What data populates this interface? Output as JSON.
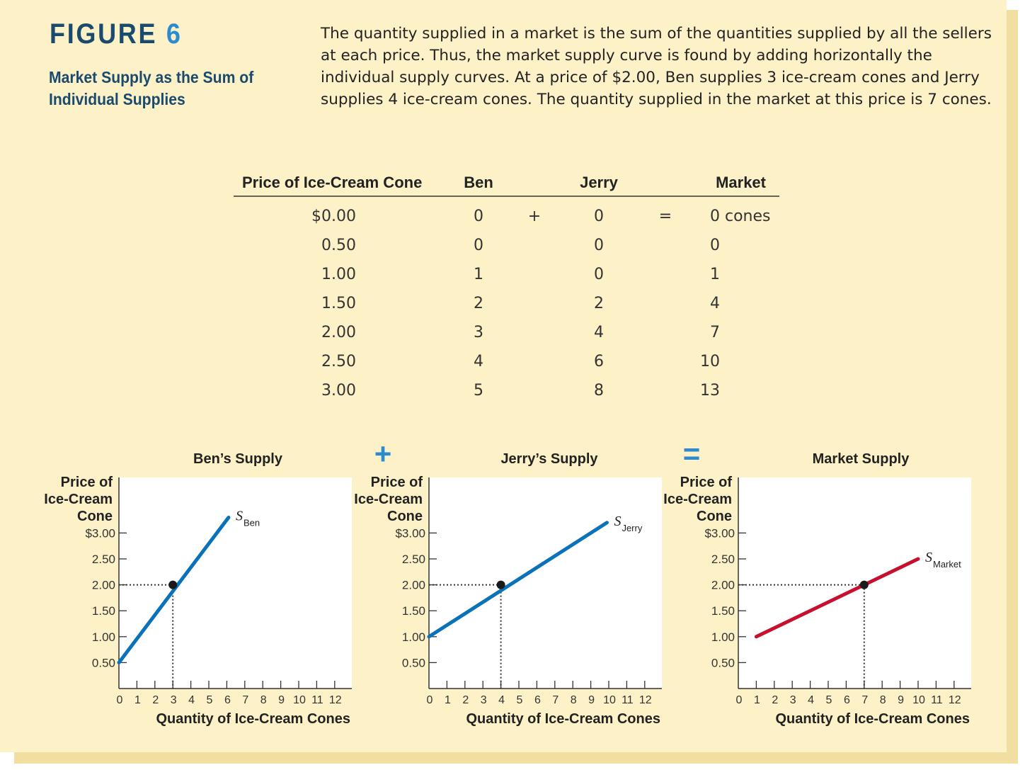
{
  "figure": {
    "label": "FIGURE",
    "number": "6",
    "subtitle": "Market Supply as the Sum of Individual Supplies",
    "caption": "The quantity supplied in a market is the sum of the quantities supplied by all the sellers at each price. Thus, the market supply curve is found by adding horizontally the individual supply curves. At a price of $2.00, Ben supplies 3 ice-cream cones and Jerry supplies 4 ice-cream cones. The quantity supplied in the market at this price is 7 cones."
  },
  "table": {
    "headers": [
      "Price of Ice-Cream Cone",
      "Ben",
      "Jerry",
      "Market"
    ],
    "plus_sign": "+",
    "equals_sign": "=",
    "rows": [
      {
        "price": "$0.00",
        "ben": "0",
        "jerry": "0",
        "market": "0 cones"
      },
      {
        "price": "0.50",
        "ben": "0",
        "jerry": "0",
        "market": "0"
      },
      {
        "price": "1.00",
        "ben": "1",
        "jerry": "0",
        "market": "1"
      },
      {
        "price": "1.50",
        "ben": "2",
        "jerry": "2",
        "market": "4"
      },
      {
        "price": "2.00",
        "ben": "3",
        "jerry": "4",
        "market": "7"
      },
      {
        "price": "2.50",
        "ben": "4",
        "jerry": "6",
        "market": "10"
      },
      {
        "price": "3.00",
        "ben": "5",
        "jerry": "8",
        "market": "13"
      }
    ]
  },
  "operators": {
    "plus": "+",
    "equals": "="
  },
  "chart_data": [
    {
      "type": "line",
      "title": "Ben’s Supply",
      "ylabel": [
        "Price of",
        "Ice-Cream",
        "Cone"
      ],
      "xlabel": "Quantity of Ice-Cream Cones",
      "yticks": [
        "$3.00",
        "2.50",
        "2.00",
        "1.50",
        "1.00",
        "0.50"
      ],
      "ytick_values": [
        3.0,
        2.5,
        2.0,
        1.5,
        1.0,
        0.5
      ],
      "xticks": [
        "0",
        "1",
        "2",
        "3",
        "4",
        "5",
        "6",
        "7",
        "8",
        "9",
        "10",
        "11",
        "12"
      ],
      "xlim": [
        0,
        12
      ],
      "ylim": [
        0,
        3.5
      ],
      "curve_label": "S",
      "curve_subscript": "Ben",
      "color": "#0a72b8",
      "line": [
        [
          0,
          0.5
        ],
        [
          6.1,
          3.3
        ]
      ],
      "highlight": {
        "x": 3,
        "y": 2.0
      }
    },
    {
      "type": "line",
      "title": "Jerry’s Supply",
      "ylabel": [
        "Price of",
        "Ice-Cream",
        "Cone"
      ],
      "xlabel": "Quantity of Ice-Cream Cones",
      "yticks": [
        "$3.00",
        "2.50",
        "2.00",
        "1.50",
        "1.00",
        "0.50"
      ],
      "ytick_values": [
        3.0,
        2.5,
        2.0,
        1.5,
        1.0,
        0.5
      ],
      "xticks": [
        "0",
        "1",
        "2",
        "3",
        "4",
        "5",
        "6",
        "7",
        "8",
        "9",
        "10",
        "11",
        "12"
      ],
      "xlim": [
        0,
        12
      ],
      "ylim": [
        0,
        3.5
      ],
      "curve_label": "S",
      "curve_subscript": "Jerry",
      "color": "#0a72b8",
      "line": [
        [
          0,
          1.0
        ],
        [
          9.9,
          3.2
        ]
      ],
      "highlight": {
        "x": 4,
        "y": 2.0
      }
    },
    {
      "type": "line",
      "title": "Market Supply",
      "ylabel": [
        "Price of",
        "Ice-Cream",
        "Cone"
      ],
      "xlabel": "Quantity of Ice-Cream Cones",
      "yticks": [
        "$3.00",
        "2.50",
        "2.00",
        "1.50",
        "1.00",
        "0.50"
      ],
      "ytick_values": [
        3.0,
        2.5,
        2.0,
        1.5,
        1.0,
        0.5
      ],
      "xticks": [
        "0",
        "1",
        "2",
        "3",
        "4",
        "5",
        "6",
        "7",
        "8",
        "9",
        "10",
        "11",
        "12"
      ],
      "xlim": [
        0,
        12
      ],
      "ylim": [
        0,
        3.5
      ],
      "curve_label": "S",
      "curve_subscript": "Market",
      "color": "#c8102e",
      "line": [
        [
          1,
          1.0
        ],
        [
          10,
          2.5
        ]
      ],
      "highlight": {
        "x": 7,
        "y": 2.0
      }
    }
  ]
}
